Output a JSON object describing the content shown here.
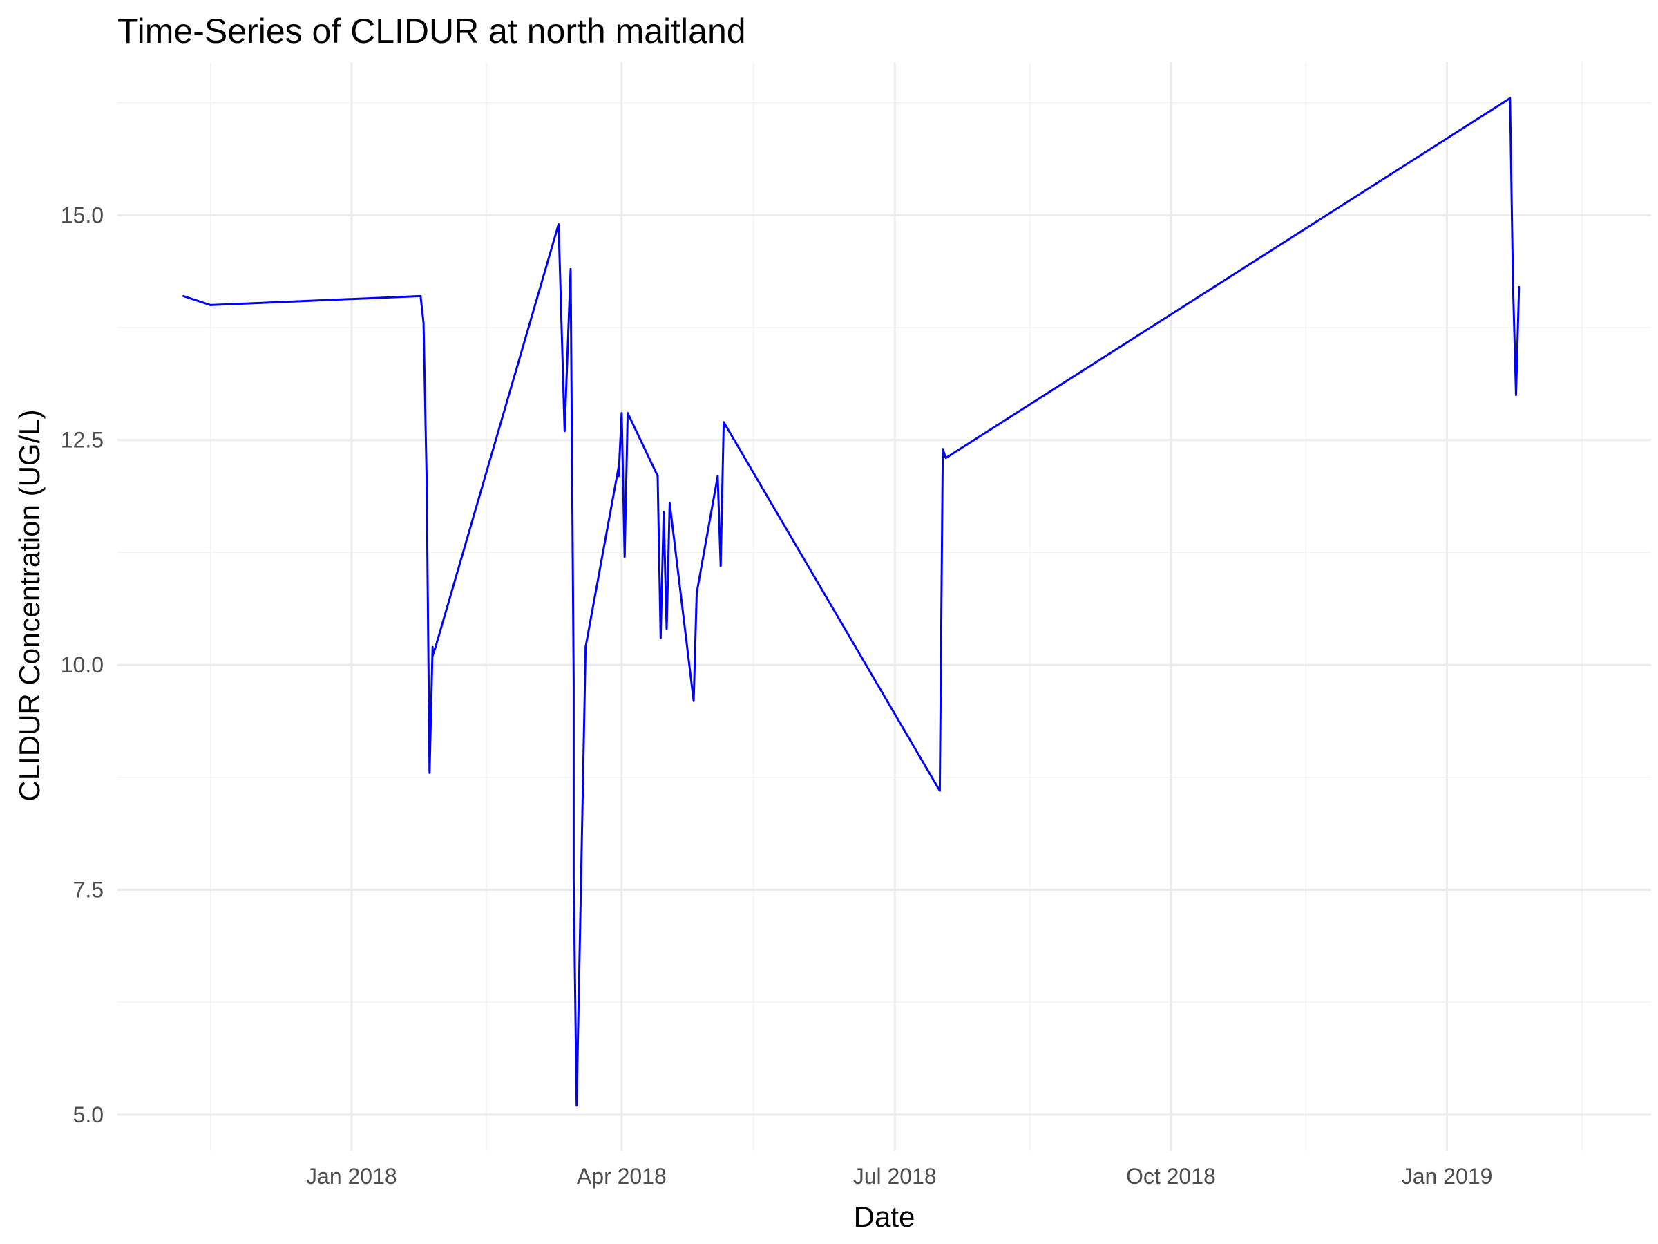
{
  "chart_data": {
    "type": "line",
    "title": "Time-Series of CLIDUR at north maitland",
    "xlabel": "Date",
    "ylabel": "CLIDUR Concentration (UG/L)",
    "x_type": "date",
    "xlim": [
      "2017-10-15",
      "2019-03-10"
    ],
    "ylim": [
      4.6,
      16.7
    ],
    "x_ticks": [
      {
        "value": "2018-01-01",
        "label": "Jan 2018"
      },
      {
        "value": "2018-04-01",
        "label": "Apr 2018"
      },
      {
        "value": "2018-07-01",
        "label": "Jul 2018"
      },
      {
        "value": "2018-10-01",
        "label": "Oct 2018"
      },
      {
        "value": "2019-01-01",
        "label": "Jan 2019"
      }
    ],
    "x_minor_ticks": [
      "2017-11-15",
      "2018-02-15",
      "2018-05-15",
      "2018-08-15",
      "2018-11-15",
      "2019-02-15"
    ],
    "y_ticks": [
      {
        "value": 5.0,
        "label": "5.0"
      },
      {
        "value": 7.5,
        "label": "7.5"
      },
      {
        "value": 10.0,
        "label": "10.0"
      },
      {
        "value": 12.5,
        "label": "12.5"
      },
      {
        "value": 15.0,
        "label": "15.0"
      }
    ],
    "y_minor_ticks": [
      6.25,
      8.75,
      11.25,
      13.75,
      16.25
    ],
    "grid": true,
    "legend": "none",
    "color": "#0000ff",
    "series": [
      {
        "x": [
          "2017-11-06",
          "2017-11-15",
          "2018-01-24",
          "2018-01-25",
          "2018-01-26",
          "2018-01-27",
          "2018-01-28",
          "2018-01-28",
          "2018-01-29",
          "2018-03-11",
          "2018-03-13",
          "2018-03-15",
          "2018-03-16",
          "2018-03-16",
          "2018-03-17",
          "2018-03-20",
          "2018-03-31",
          "2018-03-31",
          "2018-04-01",
          "2018-04-02",
          "2018-04-03",
          "2018-04-13",
          "2018-04-14",
          "2018-04-15",
          "2018-04-16",
          "2018-04-17",
          "2018-04-25",
          "2018-04-26",
          "2018-05-03",
          "2018-05-04",
          "2018-05-05",
          "2018-07-16",
          "2018-07-17",
          "2018-07-18",
          "2019-01-22",
          "2019-01-23",
          "2019-01-24",
          "2019-01-25"
        ],
        "y": [
          14.1,
          14.0,
          14.1,
          13.8,
          12.1,
          8.8,
          10.2,
          10.1,
          10.2,
          14.9,
          12.6,
          14.4,
          9.8,
          7.6,
          5.1,
          10.2,
          12.2,
          12.1,
          12.8,
          11.2,
          12.8,
          12.1,
          10.3,
          11.7,
          10.4,
          11.8,
          9.6,
          10.8,
          12.1,
          11.1,
          12.7,
          8.6,
          12.4,
          12.3,
          16.3,
          14.2,
          13.0,
          14.2
        ]
      }
    ]
  }
}
